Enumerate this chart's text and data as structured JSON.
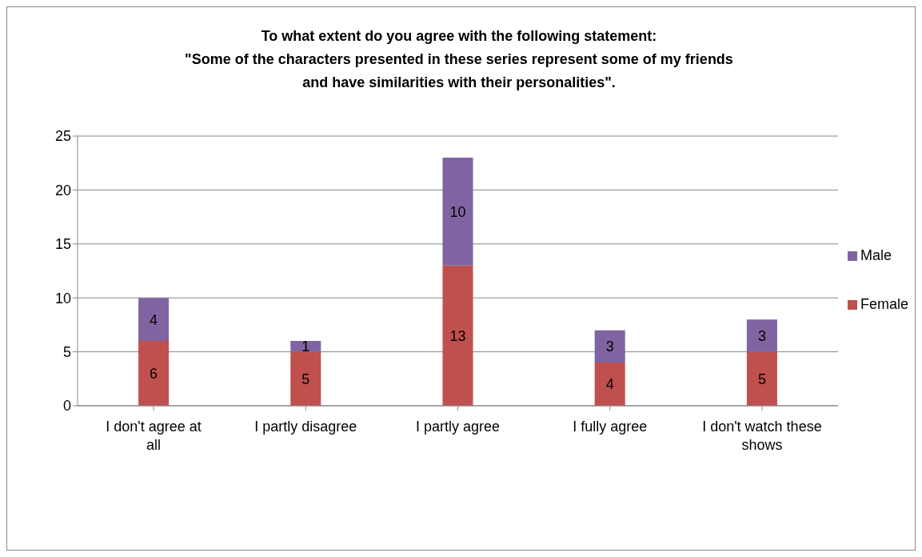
{
  "chart_data": {
    "type": "bar",
    "title": "To what extent do you agree with the following statement:\n\"Some of the characters presented in these series represent some of my friends\nand have similarities with their personalities\".",
    "categories": [
      "I don't agree at all",
      "I partly disagree",
      "I partly agree",
      "I fully agree",
      "I don't watch these shows"
    ],
    "stacked": true,
    "series": [
      {
        "name": "Female",
        "color": "#c0504d",
        "values": [
          6,
          5,
          13,
          4,
          5
        ]
      },
      {
        "name": "Male",
        "color": "#8064a2",
        "values": [
          4,
          1,
          10,
          3,
          3
        ]
      }
    ],
    "ylim": [
      0,
      25
    ],
    "yticks": [
      0,
      5,
      10,
      15,
      20,
      25
    ],
    "grid": "y",
    "legend": "right",
    "data_labels": true
  }
}
